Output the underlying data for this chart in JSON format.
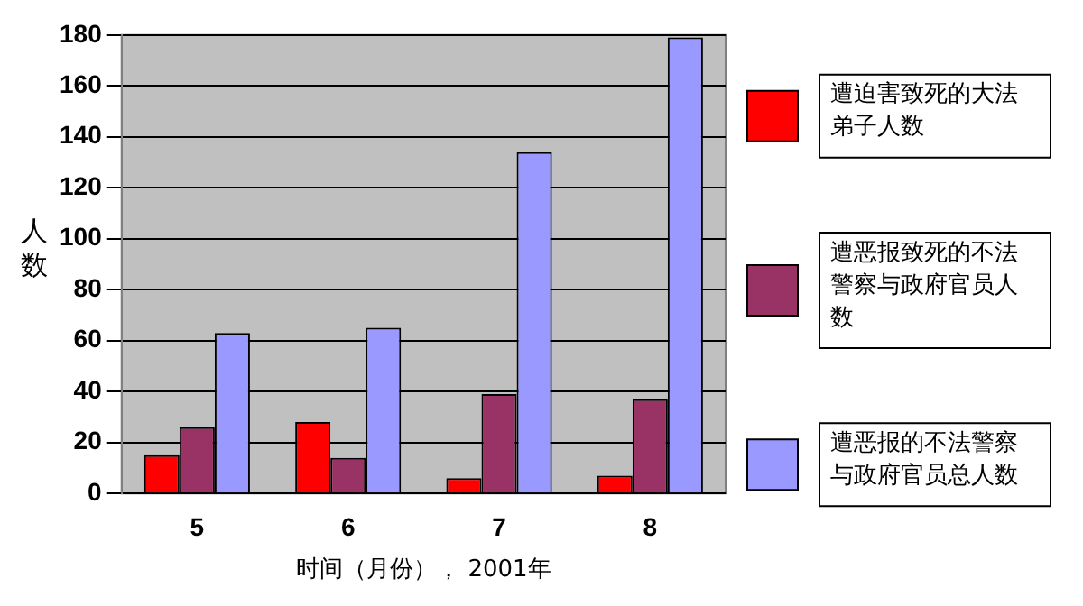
{
  "chart_data": {
    "type": "bar",
    "xlabel": "时间（月份）， 2001年",
    "ylabel": "人数",
    "categories": [
      "5",
      "6",
      "7",
      "8"
    ],
    "series": [
      {
        "name": "遭迫害致死的大法弟子人数",
        "color": "#ff0000",
        "values": [
          15,
          28,
          6,
          7
        ]
      },
      {
        "name": "遭恶报致死的不法警察与政府官员人数",
        "color": "#993366",
        "values": [
          26,
          14,
          39,
          37
        ]
      },
      {
        "name": "遭恶报的不法警察与政府官员总人数",
        "color": "#9999ff",
        "values": [
          63,
          65,
          134,
          179
        ]
      }
    ],
    "ylim": [
      0,
      180
    ],
    "yticks": [
      0,
      20,
      40,
      60,
      80,
      100,
      120,
      140,
      160,
      180
    ],
    "grid": "y",
    "legend": "right"
  }
}
